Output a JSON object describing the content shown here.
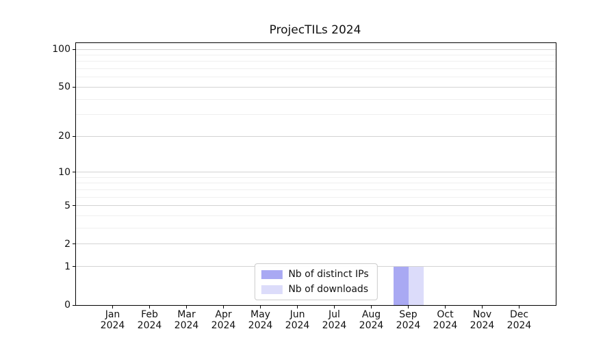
{
  "chart_data": {
    "type": "bar",
    "title": "ProjecTILs 2024",
    "x": {
      "months": [
        "Jan",
        "Feb",
        "Mar",
        "Apr",
        "May",
        "Jun",
        "Jul",
        "Aug",
        "Sep",
        "Oct",
        "Nov",
        "Dec"
      ],
      "year": "2024"
    },
    "series": [
      {
        "name": "Nb of distinct IPs",
        "color": "#a9a9f3",
        "values": [
          0,
          0,
          0,
          0,
          0,
          0,
          0,
          0,
          1,
          0,
          0,
          0
        ]
      },
      {
        "name": "Nb of downloads",
        "color": "#dcdcfa",
        "values": [
          0,
          0,
          0,
          0,
          0,
          0,
          0,
          0,
          1,
          0,
          0,
          0
        ]
      }
    ],
    "y_scale": "log1p",
    "y_ticks": [
      0,
      1,
      2,
      5,
      10,
      20,
      50,
      100
    ],
    "y_minor_ticks": [
      3,
      4,
      6,
      7,
      8,
      9,
      30,
      40,
      60,
      70,
      80,
      90
    ],
    "ylim": [
      0,
      112
    ],
    "grid": true,
    "legend_position": "lower center",
    "colors": {
      "major_grid": "#d3d3d3",
      "minor_grid": "#efefef",
      "axis": "#000000",
      "text": "#111111"
    }
  }
}
